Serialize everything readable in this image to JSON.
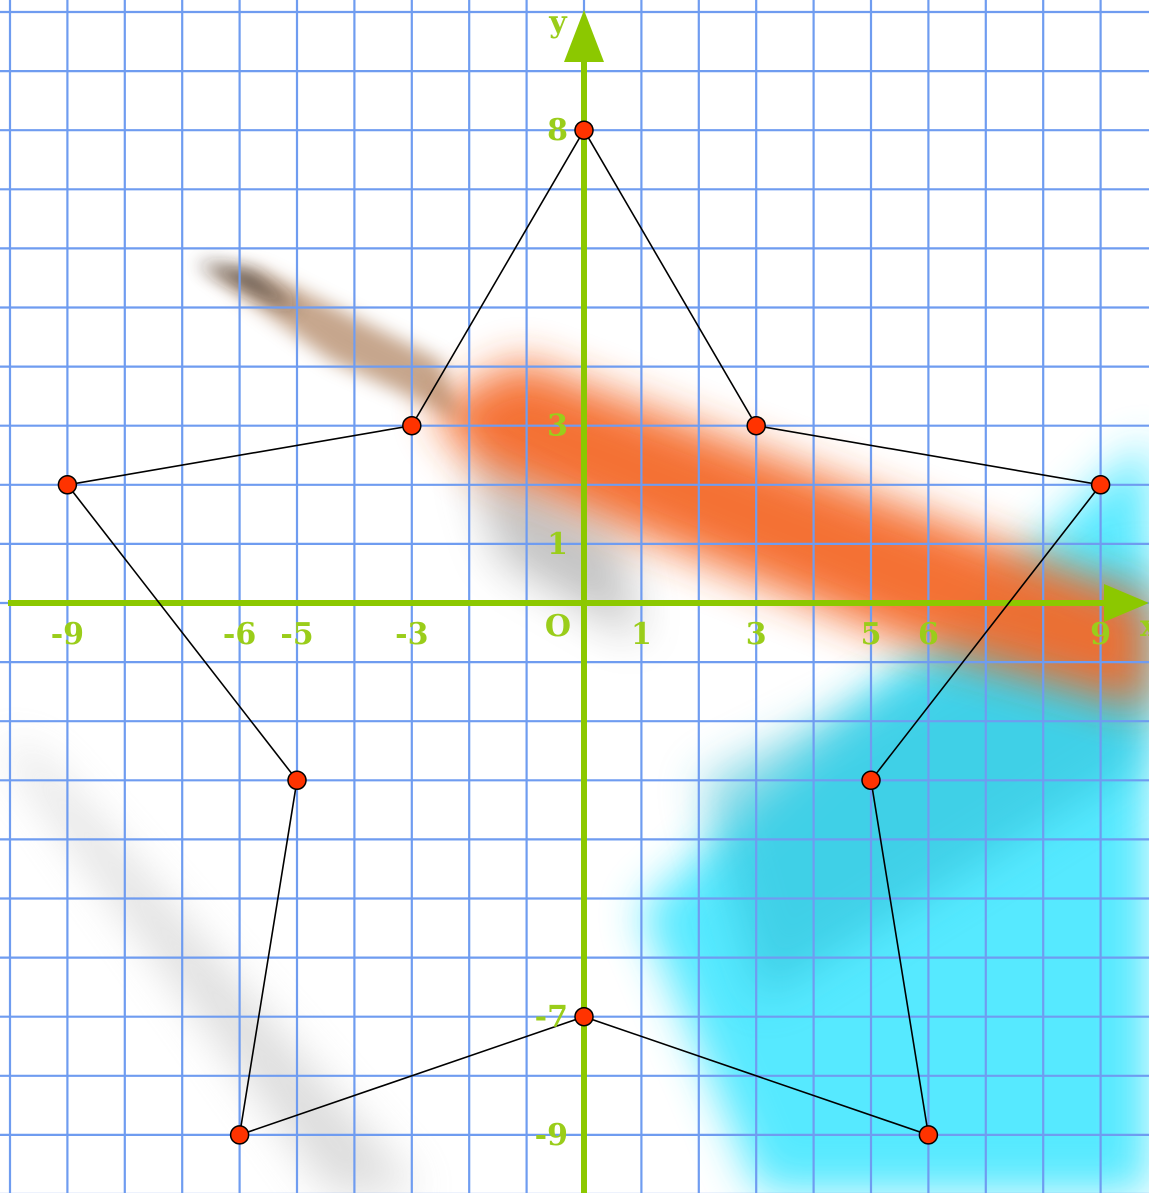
{
  "colors": {
    "grid": "#6f9cf0",
    "axis": "#8cc800",
    "label": "#9acd1a",
    "star_line": "#000000",
    "point_fill": "#ff3300",
    "point_stroke": "#000000",
    "bg_orange": "#f46a2a",
    "bg_cyan": "#4de8ff",
    "bg_gray": "#c8c8c8"
  },
  "axes": {
    "x_name": "x",
    "y_name": "y",
    "origin_label": "O",
    "x_ticks": [
      {
        "value": -9,
        "label": "-9"
      },
      {
        "value": -6,
        "label": "-6"
      },
      {
        "value": -5,
        "label": "-5"
      },
      {
        "value": -3,
        "label": "-3"
      },
      {
        "value": 1,
        "label": "1"
      },
      {
        "value": 3,
        "label": "3"
      },
      {
        "value": 5,
        "label": "5"
      },
      {
        "value": 6,
        "label": "6"
      },
      {
        "value": 9,
        "label": "9"
      }
    ],
    "y_ticks": [
      {
        "value": 8,
        "label": "8"
      },
      {
        "value": 3,
        "label": "3"
      },
      {
        "value": 1,
        "label": "1"
      },
      {
        "value": -7,
        "label": "-7"
      },
      {
        "value": -9,
        "label": "-9"
      }
    ],
    "x_range": [
      -10,
      9.5
    ],
    "y_range": [
      -10,
      10
    ]
  },
  "star_points": [
    {
      "x": 0,
      "y": 8
    },
    {
      "x": 3,
      "y": 3
    },
    {
      "x": 9,
      "y": 2
    },
    {
      "x": 5,
      "y": -3
    },
    {
      "x": 6,
      "y": -9
    },
    {
      "x": 0,
      "y": -7
    },
    {
      "x": -6,
      "y": -9
    },
    {
      "x": -5,
      "y": -3
    },
    {
      "x": -9,
      "y": 2
    },
    {
      "x": -3,
      "y": 3
    }
  ]
}
